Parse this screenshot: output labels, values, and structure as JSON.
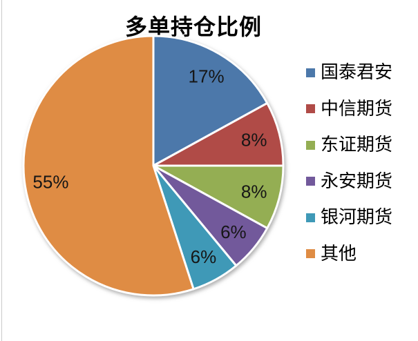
{
  "chart_title": "多单持仓比例",
  "chart_data": {
    "type": "pie",
    "title": "多单持仓比例",
    "categories": [
      "国泰君安",
      "中信期货",
      "东证期货",
      "永安期货",
      "银河期货",
      "其他"
    ],
    "values": [
      17,
      8,
      8,
      6,
      6,
      55
    ],
    "data_labels": [
      "17%",
      "8%",
      "8%",
      "6%",
      "6%",
      "55%"
    ],
    "colors": [
      "#4c78aa",
      "#b04b47",
      "#94ae53",
      "#72599b",
      "#3f99b7",
      "#df8c44"
    ],
    "start_angle_deg": 0,
    "direction": "clockwise",
    "legend_position": "right",
    "data_label_position": "inside"
  }
}
